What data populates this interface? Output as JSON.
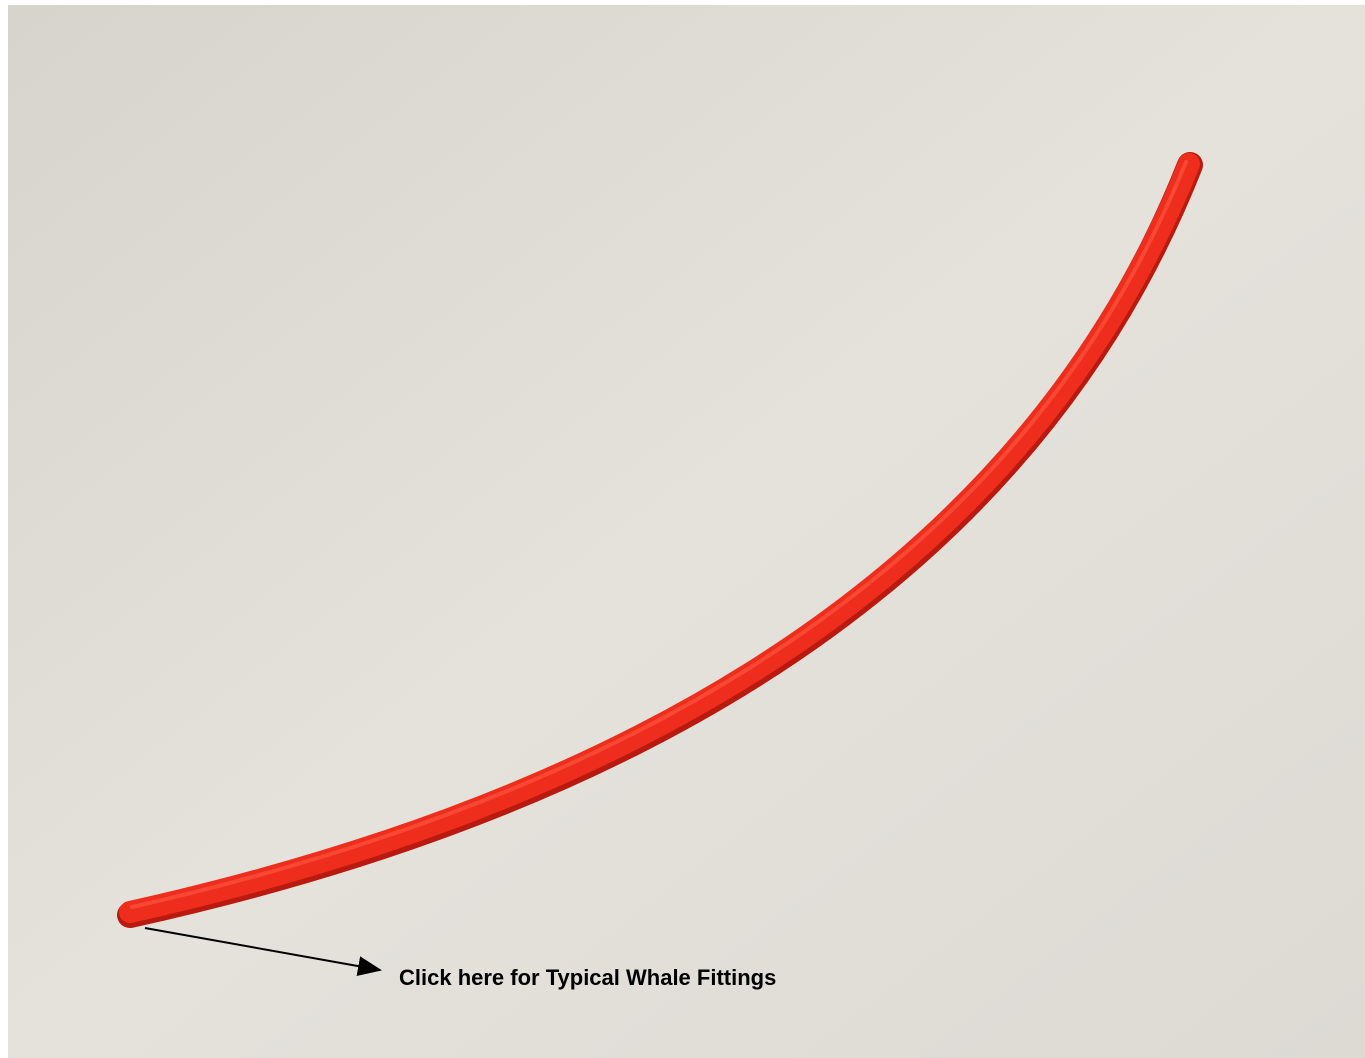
{
  "link": {
    "text": "Click here for Typical Whale Fittings"
  }
}
